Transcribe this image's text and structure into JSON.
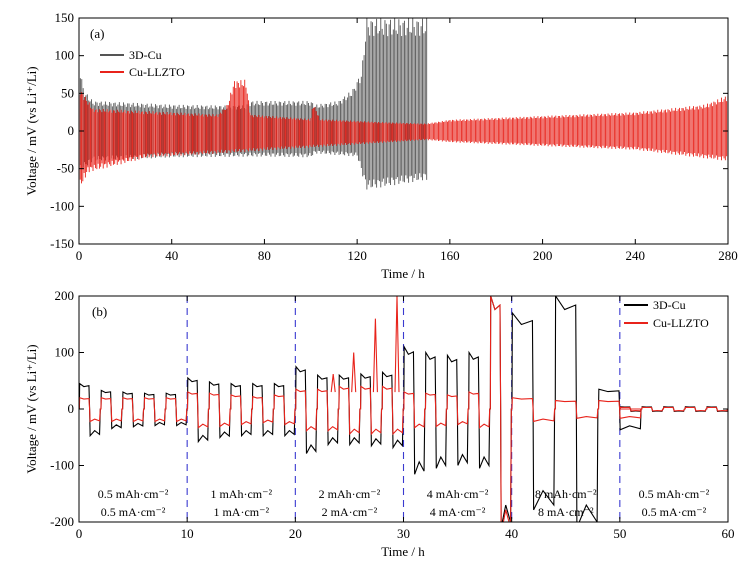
{
  "chart_data": [
    {
      "type": "line",
      "panel_label": "(a)",
      "xlabel": "Time / h",
      "ylabel": "Voltage / mV (vs Li⁺/Li)",
      "xlim": [
        0,
        280
      ],
      "ylim": [
        -150,
        150
      ],
      "xticks": [
        0,
        40,
        80,
        120,
        160,
        200,
        240,
        280
      ],
      "yticks": [
        -150,
        -100,
        -50,
        0,
        50,
        100,
        150
      ],
      "legend_position": "top-left",
      "grid": false,
      "series": [
        {
          "name": "3D-Cu",
          "color": "#555555",
          "x_end": 150,
          "upper_envelope": [
            [
              0,
              95
            ],
            [
              2,
              55
            ],
            [
              6,
              40
            ],
            [
              20,
              38
            ],
            [
              40,
              35
            ],
            [
              60,
              34
            ],
            [
              72,
              34
            ],
            [
              74,
              40
            ],
            [
              100,
              40
            ],
            [
              102,
              35
            ],
            [
              112,
              40
            ],
            [
              118,
              55
            ],
            [
              122,
              80
            ],
            [
              124,
              150
            ],
            [
              150,
              150
            ]
          ],
          "lower_envelope": [
            [
              0,
              -55
            ],
            [
              6,
              -40
            ],
            [
              40,
              -35
            ],
            [
              80,
              -34
            ],
            [
              100,
              -35
            ],
            [
              102,
              -30
            ],
            [
              120,
              -34
            ],
            [
              124,
              -78
            ],
            [
              150,
              -65
            ]
          ]
        },
        {
          "name": "Cu-LLZTO",
          "color": "#e8231b",
          "x_end": 280,
          "upper_envelope": [
            [
              0,
              60
            ],
            [
              6,
              30
            ],
            [
              40,
              25
            ],
            [
              60,
              22
            ],
            [
              64,
              35
            ],
            [
              67,
              68
            ],
            [
              72,
              68
            ],
            [
              74,
              22
            ],
            [
              100,
              16
            ],
            [
              101,
              38
            ],
            [
              104,
              16
            ],
            [
              130,
              12
            ],
            [
              150,
              10
            ],
            [
              160,
              15
            ],
            [
              200,
              20
            ],
            [
              240,
              25
            ],
            [
              270,
              35
            ],
            [
              280,
              48
            ]
          ],
          "lower_envelope": [
            [
              0,
              -80
            ],
            [
              4,
              -55
            ],
            [
              30,
              -35
            ],
            [
              60,
              -30
            ],
            [
              100,
              -22
            ],
            [
              150,
              -12
            ],
            [
              160,
              -15
            ],
            [
              200,
              -20
            ],
            [
              240,
              -25
            ],
            [
              280,
              -40
            ]
          ]
        }
      ]
    },
    {
      "type": "line",
      "panel_label": "(b)",
      "xlabel": "Time / h",
      "ylabel": "Voltage / mV (vs Li⁺/Li)",
      "xlim": [
        0,
        60
      ],
      "ylim": [
        -200,
        200
      ],
      "xticks": [
        0,
        10,
        20,
        30,
        40,
        50,
        60
      ],
      "yticks": [
        -200,
        -100,
        0,
        100,
        200
      ],
      "legend_position": "top-right",
      "grid": false,
      "segment_boundaries": [
        10,
        20,
        30,
        40,
        50
      ],
      "segments": [
        {
          "x_range": [
            0,
            10
          ],
          "capacity": "0.5 mAh·cm⁻²",
          "current": "0.5 mA·cm⁻²",
          "cycle_period": 2,
          "cu_amp": [
            45,
            33,
            30,
            28,
            28
          ],
          "llzto_amp": [
            20,
            20,
            20,
            20,
            20
          ]
        },
        {
          "x_range": [
            10,
            20
          ],
          "capacity": "1 mAh·cm⁻²",
          "current": "1 mA·cm⁻²",
          "cycle_period": 2,
          "cu_amp": [
            55,
            48,
            45,
            45,
            45
          ],
          "llzto_amp": [
            30,
            28,
            25,
            22,
            25
          ]
        },
        {
          "x_range": [
            20,
            30
          ],
          "capacity": "2 mAh·cm⁻²",
          "current": "2 mA·cm⁻²",
          "cycle_period": 2,
          "cu_amp": [
            75,
            60,
            60,
            62,
            65
          ],
          "llzto_amp": [
            35,
            35,
            40,
            40,
            40
          ],
          "llzto_spikes": [
            [
              23.5,
              62
            ],
            [
              25.4,
              100
            ],
            [
              27.4,
              160
            ],
            [
              29.4,
              200
            ]
          ]
        },
        {
          "x_range": [
            30,
            40
          ],
          "capacity": "4 mAh·cm⁻²",
          "current": "4 mA·cm⁻²",
          "cycle_period": 2,
          "cu_amp": [
            110,
            100,
            95,
            100,
            200
          ],
          "llzto_amp": [
            30,
            28,
            25,
            30,
            200
          ]
        },
        {
          "x_range": [
            40,
            50
          ],
          "capacity": "8 mAh·cm⁻²",
          "current": "8 mA·cm⁻²",
          "cycle_period": 4,
          "cu_amp": [
            170,
            200,
            35
          ],
          "llzto_amp": [
            20,
            15,
            15
          ]
        },
        {
          "x_range": [
            50,
            60
          ],
          "capacity": "0.5 mAh·cm⁻²",
          "current": "0.5 mA·cm⁻²",
          "cycle_period": 2,
          "cu_amp": [
            4,
            4,
            4,
            4,
            4
          ],
          "llzto_amp": [
            3,
            3,
            3,
            3,
            3
          ]
        }
      ],
      "series": [
        {
          "name": "3D-Cu",
          "color": "#000000"
        },
        {
          "name": "Cu-LLZTO",
          "color": "#e8231b"
        }
      ]
    }
  ]
}
